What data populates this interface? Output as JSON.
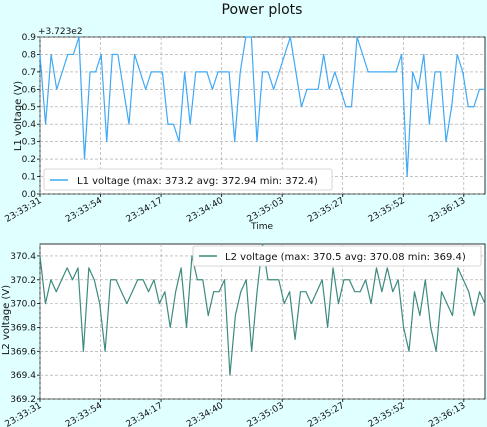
{
  "title": "Power plots",
  "colors": {
    "background": "#e0ffff",
    "l1": "#3fa9f5",
    "l2": "#3d8b7f",
    "grid": "#a0a0a0"
  },
  "time_ticks": [
    "23:33:31",
    "23:33:54",
    "23:34:17",
    "23:34:40",
    "23:35:03",
    "23:35:27",
    "23:35:52",
    "23:36:13"
  ],
  "chart_data": [
    {
      "type": "line",
      "ylabel": "L1 voltage (V)",
      "xlabel": "Time",
      "offset_text": "+3.723e2",
      "ylim": [
        0.0,
        0.9
      ],
      "yticks": [
        "0.0",
        "0.1",
        "0.2",
        "0.3",
        "0.4",
        "0.5",
        "0.6",
        "0.7",
        "0.8",
        "0.9"
      ],
      "grid": true,
      "legend": "bottom-left",
      "series": [
        {
          "name": "L1 voltage (max: 373.2 avg: 372.94 min: 372.4)",
          "values": [
            0.8,
            0.4,
            0.8,
            0.6,
            0.7,
            0.8,
            0.8,
            0.9,
            0.2,
            0.7,
            0.7,
            0.8,
            0.3,
            0.8,
            0.8,
            0.6,
            0.4,
            0.8,
            0.7,
            0.6,
            0.7,
            0.7,
            0.7,
            0.4,
            0.4,
            0.3,
            0.7,
            0.4,
            0.7,
            0.7,
            0.7,
            0.6,
            0.7,
            0.7,
            0.7,
            0.3,
            0.7,
            0.9,
            0.9,
            0.3,
            0.7,
            0.7,
            0.6,
            0.7,
            0.8,
            0.9,
            0.7,
            0.5,
            0.6,
            0.6,
            0.6,
            0.8,
            0.6,
            0.7,
            0.6,
            0.5,
            0.5,
            0.9,
            0.8,
            0.7,
            0.7,
            0.7,
            0.7,
            0.7,
            0.7,
            0.8,
            0.1,
            0.7,
            0.6,
            0.8,
            0.4,
            0.7,
            0.7,
            0.3,
            0.5,
            0.8,
            0.7,
            0.5,
            0.5,
            0.6,
            0.6
          ]
        }
      ]
    },
    {
      "type": "line",
      "ylabel": "L2 voltage (V)",
      "xlabel": "",
      "ylim": [
        369.2,
        370.5
      ],
      "yticks": [
        "369.2",
        "369.4",
        "369.6",
        "369.8",
        "370.0",
        "370.2",
        "370.4"
      ],
      "grid": true,
      "legend": "top-right",
      "series": [
        {
          "name": "L2 voltage (max: 370.5 avg: 370.08 min: 369.4)",
          "values": [
            370.4,
            370.0,
            370.2,
            370.1,
            370.2,
            370.3,
            370.2,
            370.3,
            369.6,
            370.3,
            370.2,
            370.0,
            369.6,
            370.2,
            370.2,
            370.1,
            370.0,
            370.1,
            370.2,
            370.2,
            370.1,
            370.2,
            370.0,
            370.1,
            369.8,
            370.1,
            370.3,
            369.8,
            370.4,
            370.2,
            370.2,
            369.9,
            370.1,
            370.1,
            370.2,
            369.4,
            369.9,
            370.1,
            370.2,
            369.6,
            370.1,
            370.5,
            370.2,
            370.2,
            370.2,
            370.0,
            370.1,
            369.7,
            370.1,
            370.1,
            370.0,
            370.1,
            370.2,
            369.8,
            370.3,
            370.0,
            370.2,
            370.2,
            370.1,
            370.1,
            370.2,
            370.0,
            370.3,
            370.1,
            370.3,
            370.1,
            370.2,
            369.8,
            369.6,
            370.1,
            369.9,
            370.2,
            369.8,
            369.6,
            370.1,
            370.0,
            369.9,
            370.3,
            370.2,
            370.1,
            369.9,
            370.1,
            370.0
          ]
        }
      ]
    }
  ]
}
